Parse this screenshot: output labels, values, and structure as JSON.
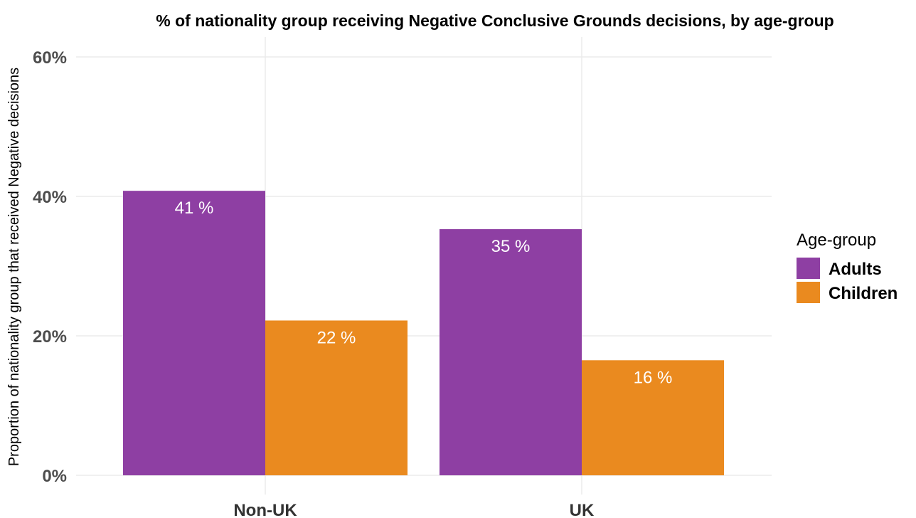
{
  "chart_data": {
    "type": "bar",
    "title": "% of nationality group receiving Negative Conclusive Grounds decisions, by age-group",
    "ylabel": "Proportion of nationality group that received Negative decisions",
    "xlabel": "",
    "categories": [
      "Non-UK",
      "UK"
    ],
    "series": [
      {
        "name": "Adults",
        "color": "#8e3fa3",
        "values": [
          40.8,
          35.3
        ],
        "labels": [
          "41 %",
          "35 %"
        ]
      },
      {
        "name": "Children",
        "color": "#ea8a1f",
        "values": [
          22.2,
          16.5
        ],
        "labels": [
          "22 %",
          "16 %"
        ]
      }
    ],
    "ylim": [
      0,
      60
    ],
    "yticks": [
      0,
      20,
      40,
      60
    ],
    "ytick_labels": [
      "0%",
      "20%",
      "40%",
      "60%"
    ],
    "grid": true,
    "legend": {
      "title": "Age-group",
      "placement": "right"
    }
  }
}
